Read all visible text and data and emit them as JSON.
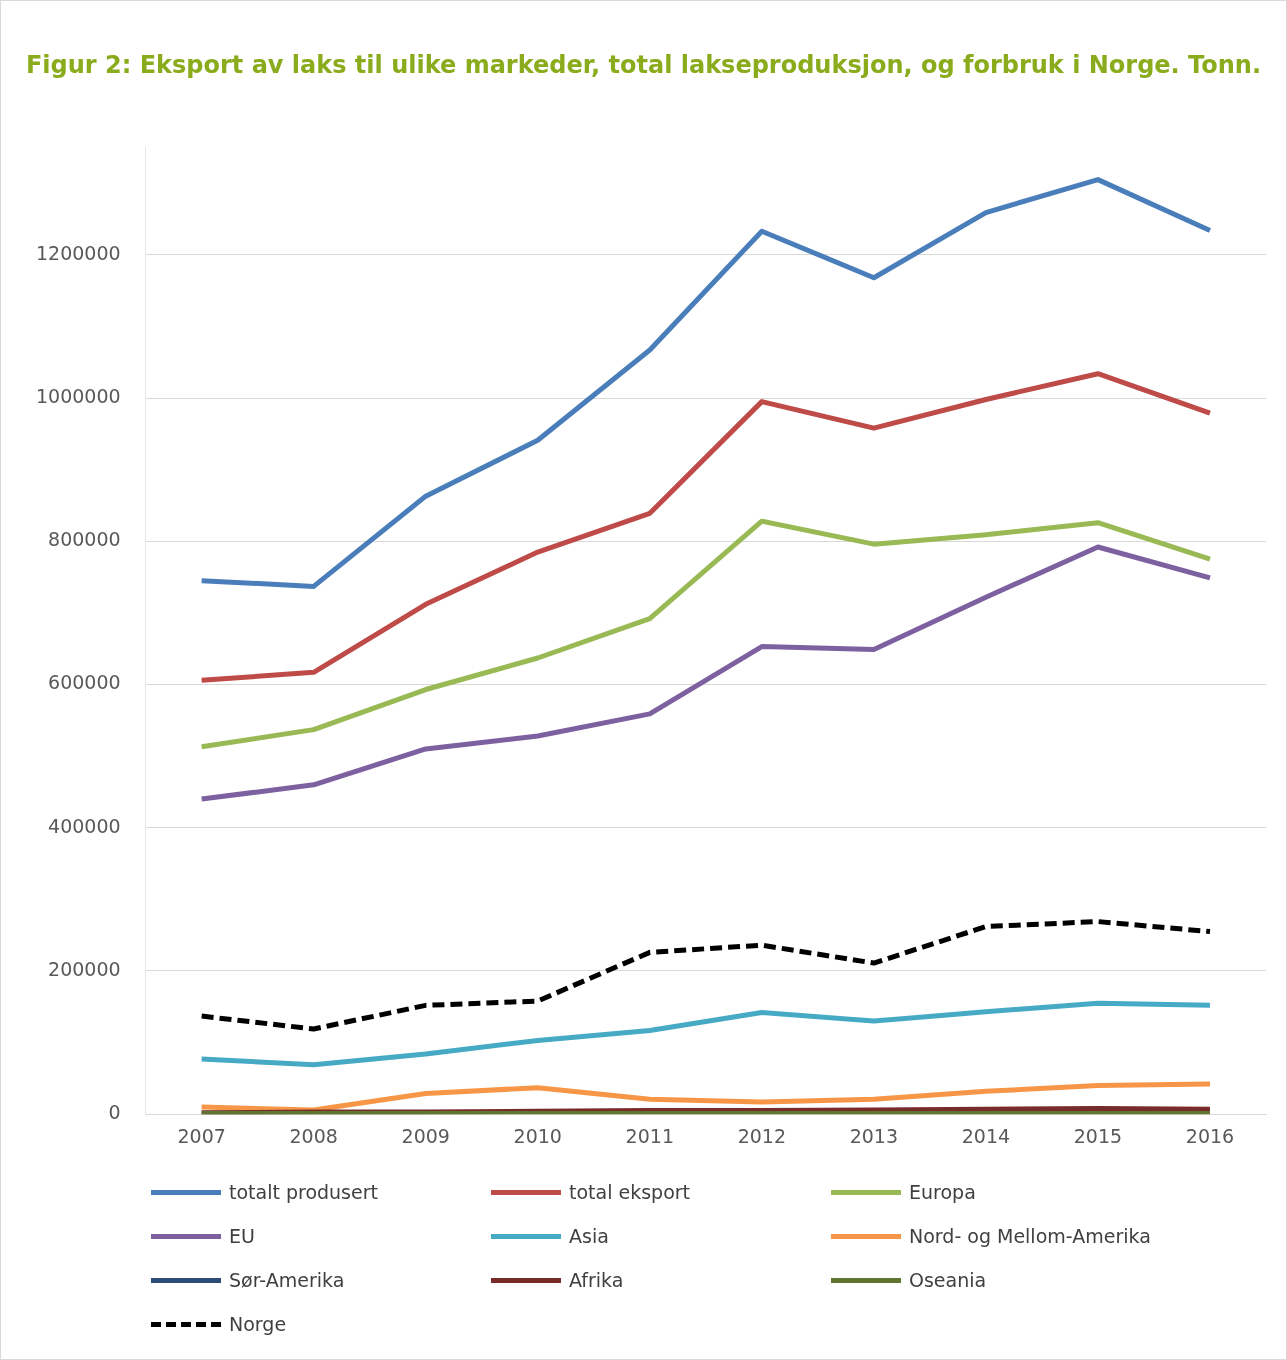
{
  "chart_data": {
    "type": "line",
    "title": "Figur 2: Eksport av laks til ulike markeder, total lakseproduksjon, og forbruk i Norge. Tonn.",
    "categories": [
      "2007",
      "2008",
      "2009",
      "2010",
      "2011",
      "2012",
      "2013",
      "2014",
      "2015",
      "2016"
    ],
    "series": [
      {
        "name": "totalt produsert",
        "color": "#4a7ebb",
        "values": [
          745000,
          737000,
          863000,
          941000,
          1067000,
          1233000,
          1168000,
          1259000,
          1305000,
          1234000
        ]
      },
      {
        "name": "total eksport",
        "color": "#be4b48",
        "values": [
          606000,
          617000,
          712000,
          785000,
          839000,
          995000,
          958000,
          998000,
          1034000,
          979000
        ]
      },
      {
        "name": "Europa",
        "color": "#98b954",
        "values": [
          513000,
          537000,
          593000,
          637000,
          692000,
          828000,
          796000,
          809000,
          826000,
          775000
        ]
      },
      {
        "name": "EU",
        "color": "#7d60a0",
        "values": [
          440000,
          460000,
          510000,
          528000,
          559000,
          653000,
          649000,
          722000,
          792000,
          749000
        ]
      },
      {
        "name": "Asia",
        "color": "#46aac5",
        "values": [
          77000,
          69000,
          84000,
          103000,
          117000,
          142000,
          130000,
          143000,
          155000,
          152000
        ]
      },
      {
        "name": "Nord- og Mellom-Amerika",
        "color": "#f79646",
        "values": [
          10000,
          6000,
          29000,
          37000,
          21000,
          17000,
          21000,
          32000,
          40000,
          42000
        ]
      },
      {
        "name": "Sør-Amerika",
        "color": "#2c4d75",
        "values": [
          null,
          null,
          null,
          null,
          null,
          null,
          null,
          null,
          null,
          null
        ]
      },
      {
        "name": "Afrika",
        "color": "#772c2a",
        "values": [
          2000,
          3000,
          3000,
          4000,
          5000,
          5000,
          6000,
          7000,
          8000,
          7000
        ]
      },
      {
        "name": "Oseania",
        "color": "#5f7530",
        "values": [
          1000,
          1000,
          1000,
          1000,
          1000,
          1000,
          1000,
          1000,
          1000,
          1000
        ]
      },
      {
        "name": "Norge",
        "color": "#000000",
        "line_style": "dashed",
        "values": [
          137000,
          119000,
          152000,
          158000,
          226000,
          236000,
          211000,
          262000,
          269000,
          255000
        ]
      }
    ],
    "ylim": [
      0,
      1350000
    ],
    "yticks": [
      0,
      200000,
      400000,
      600000,
      800000,
      1000000,
      1200000
    ],
    "grid": "y",
    "legend": "bottom",
    "marker": "none"
  }
}
